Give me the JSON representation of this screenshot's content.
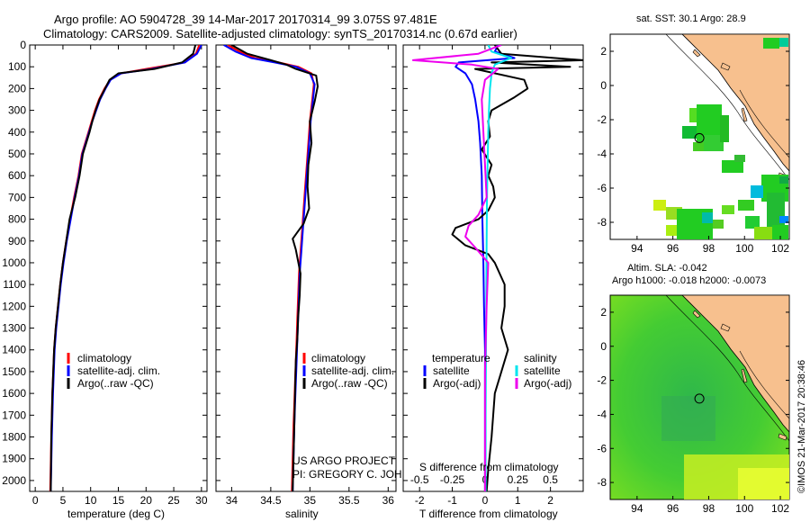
{
  "header": {
    "line1": "Argo profile: AO 5904728_39 14-Mar-2017 20170314_99 3.075S 97.481E",
    "line2": "Climatology: CARS2009. Satellite-adjusted climatology: synTS_20170314.nc (0.67d earlier)"
  },
  "footer": {
    "project": "US ARGO PROJECT",
    "pi": "PI: GREGORY C. JOHNSON",
    "credit": "©IMOS 21-Mar-2017 20:38:46"
  },
  "colors": {
    "climatology": "#ff0000",
    "satellite": "#0000ff",
    "argo": "#000000",
    "sal_satellite": "#00e5ee",
    "sal_argo": "#ee00ee",
    "land": "#f7c08e",
    "sst_green": "#22cc22"
  },
  "chart_data": [
    {
      "type": "line",
      "id": "temperature",
      "xlabel": "temperature (deg C)",
      "ylabel": "depth",
      "xlim": [
        -1,
        31
      ],
      "ylim": [
        2050,
        0
      ],
      "xticks": [
        "0",
        "5",
        "10",
        "15",
        "20",
        "25",
        "30"
      ],
      "yticks": [
        "0",
        "100",
        "200",
        "300",
        "400",
        "500",
        "600",
        "700",
        "800",
        "900",
        "1000",
        "1100",
        "1200",
        "1300",
        "1400",
        "1500",
        "1600",
        "1700",
        "1800",
        "1900",
        "2000"
      ],
      "legend": [
        "climatology",
        "satellite-adj. clim.",
        "Argo(..raw -QC)"
      ],
      "series": [
        {
          "name": "climatology",
          "color": "#ff0000",
          "x": [
            29.6,
            29.0,
            27.0,
            20.0,
            15.5,
            13.5,
            12.5,
            11.5,
            10.8,
            10.2,
            9.6,
            9.0,
            8.4,
            7.8,
            7.0,
            6.3,
            5.6,
            5.0,
            4.5,
            4.1,
            3.7,
            3.4,
            3.1,
            2.9,
            2.7
          ],
          "y": [
            0,
            40,
            80,
            110,
            130,
            160,
            200,
            250,
            300,
            350,
            400,
            450,
            500,
            600,
            700,
            800,
            900,
            1000,
            1100,
            1200,
            1300,
            1400,
            1600,
            1800,
            2050
          ]
        },
        {
          "name": "satellite-adj. clim.",
          "color": "#0000ff",
          "x": [
            30.0,
            29.2,
            27.0,
            21.0,
            15.5,
            13.6,
            12.7,
            11.7,
            11.0,
            10.3,
            9.7,
            9.1,
            8.5,
            7.9,
            7.1,
            6.4,
            5.7,
            5.1,
            4.6,
            4.2,
            3.8,
            3.5,
            3.2,
            3.0,
            2.8
          ],
          "y": [
            0,
            40,
            80,
            110,
            130,
            160,
            200,
            250,
            300,
            350,
            400,
            450,
            500,
            600,
            700,
            800,
            900,
            1000,
            1100,
            1200,
            1300,
            1400,
            1600,
            1800,
            2050
          ]
        },
        {
          "name": "Argo(..raw -QC)",
          "color": "#000000",
          "x": [
            28.9,
            28.5,
            26.5,
            21.5,
            15.0,
            13.4,
            12.6,
            11.6,
            10.9,
            10.3,
            9.8,
            9.2,
            8.6,
            8.0,
            7.2,
            6.2,
            5.6,
            5.0,
            4.5,
            4.1,
            3.7,
            3.4,
            3.1,
            2.9,
            2.8
          ],
          "y": [
            0,
            40,
            80,
            110,
            130,
            160,
            200,
            250,
            300,
            350,
            400,
            450,
            500,
            600,
            700,
            800,
            900,
            1000,
            1100,
            1200,
            1300,
            1400,
            1600,
            1800,
            2050
          ]
        }
      ]
    },
    {
      "type": "line",
      "id": "salinity",
      "xlabel": "salinity",
      "xlim": [
        33.8,
        36.1
      ],
      "ylim": [
        2050,
        0
      ],
      "xticks": [
        "34",
        "34.5",
        "35",
        "35.5",
        "36"
      ],
      "legend": [
        "climatology",
        "satellite-adj. clim.",
        "Argo(..raw -QC)"
      ],
      "series": [
        {
          "name": "climatology",
          "color": "#ff0000",
          "x": [
            33.95,
            34.1,
            34.3,
            34.6,
            34.85,
            35.02,
            35.05,
            35.03,
            35.0,
            34.98,
            34.96,
            34.94,
            34.92,
            34.9,
            34.88,
            34.86,
            34.85,
            34.84,
            34.83,
            34.82,
            34.81,
            34.8,
            34.79,
            34.78,
            34.77
          ],
          "y": [
            0,
            30,
            60,
            80,
            100,
            130,
            180,
            250,
            350,
            450,
            550,
            650,
            750,
            850,
            950,
            1050,
            1150,
            1250,
            1350,
            1450,
            1550,
            1650,
            1750,
            1900,
            2050
          ]
        },
        {
          "name": "satellite-adj. clim.",
          "color": "#0000ff",
          "x": [
            33.9,
            34.05,
            34.25,
            34.55,
            34.82,
            35.0,
            35.06,
            35.04,
            35.01,
            34.99,
            34.97,
            34.95,
            34.93,
            34.91,
            34.89,
            34.87,
            34.86,
            34.85,
            34.84,
            34.83,
            34.82,
            34.81,
            34.8,
            34.79,
            34.78
          ],
          "y": [
            0,
            30,
            60,
            80,
            100,
            130,
            180,
            250,
            350,
            450,
            550,
            650,
            750,
            850,
            950,
            1050,
            1150,
            1250,
            1350,
            1450,
            1550,
            1650,
            1750,
            1900,
            2050
          ]
        },
        {
          "name": "Argo(..raw -QC)",
          "color": "#000000",
          "x": [
            34.0,
            34.2,
            34.5,
            34.7,
            34.82,
            35.08,
            35.1,
            35.06,
            35.0,
            35.02,
            34.98,
            34.97,
            34.99,
            34.92,
            34.84,
            34.78,
            34.82,
            34.88,
            34.87,
            34.85,
            34.84,
            34.82,
            34.81,
            34.8,
            34.79,
            34.78
          ],
          "y": [
            0,
            40,
            70,
            90,
            110,
            140,
            190,
            260,
            350,
            450,
            550,
            650,
            750,
            820,
            860,
            890,
            940,
            1050,
            1150,
            1250,
            1350,
            1450,
            1600,
            1750,
            1900,
            2050
          ]
        }
      ]
    },
    {
      "type": "line",
      "id": "difference",
      "xlabel": "T difference from climatology",
      "xlabel_top": "S difference from climatology",
      "xlim": [
        -2.5,
        3.0
      ],
      "ylim": [
        2050,
        0
      ],
      "xticks": [
        "-2",
        "-1",
        "0",
        "1",
        "2"
      ],
      "s_xticks": [
        "-0.5",
        "-0.25",
        "0",
        "0.25",
        "0.5"
      ],
      "legend_headers": [
        "temperature",
        "salinity"
      ],
      "legend": [
        "satellite",
        "Argo(-adj)",
        "satellite",
        "Argo(-adj)"
      ],
      "series": [
        {
          "name": "temperature satellite",
          "color": "#0000ff",
          "x": [
            0.4,
            0.3,
            0.9,
            -0.8,
            -0.9,
            -0.6,
            -0.4,
            -0.3,
            -0.2,
            -0.15,
            -0.1,
            -0.08,
            -0.05,
            -0.03,
            0.0,
            0.0,
            0.0,
            0.0
          ],
          "y": [
            0,
            30,
            60,
            80,
            100,
            130,
            180,
            250,
            350,
            450,
            600,
            800,
            1000,
            1200,
            1400,
            1600,
            1800,
            2050
          ]
        },
        {
          "name": "temperature Argo(-adj)",
          "color": "#000000",
          "x": [
            0.3,
            0.5,
            3.0,
            0.2,
            2.6,
            -0.3,
            1.2,
            1.3,
            0.9,
            0.2,
            0.1,
            0.15,
            -0.1,
            0.2,
            0.1,
            0.25,
            0.3,
            0.1,
            -0.2,
            -0.9,
            -1.0,
            -0.6,
            0.1,
            0.3,
            0.6,
            0.6,
            0.5,
            0.7,
            0.5,
            0.3,
            0.2,
            0.1,
            0.05
          ],
          "y": [
            0,
            40,
            70,
            80,
            100,
            110,
            160,
            200,
            240,
            300,
            350,
            420,
            480,
            550,
            600,
            650,
            700,
            760,
            800,
            840,
            870,
            920,
            960,
            1000,
            1100,
            1200,
            1300,
            1400,
            1500,
            1600,
            1800,
            1950,
            2050
          ]
        },
        {
          "name": "salinity satellite",
          "color": "#00e5ee",
          "x": [
            0.1,
            0.2,
            0.8,
            0.3,
            0.2,
            0.15,
            0.12,
            0.1,
            0.08,
            0.06,
            0.05,
            0.04,
            0.03,
            0.02,
            0.02
          ],
          "y": [
            0,
            30,
            60,
            90,
            130,
            200,
            300,
            400,
            550,
            700,
            900,
            1100,
            1400,
            1700,
            2050
          ]
        },
        {
          "name": "salinity Argo(-adj)",
          "color": "#ee00ee",
          "x": [
            0.5,
            -0.2,
            -2.2,
            -0.4,
            0.4,
            0.0,
            -0.1,
            -0.05,
            0.0,
            0.05,
            -0.2,
            -0.5,
            -0.6,
            -0.3,
            0.1,
            0.05,
            0.0,
            0.0,
            0.0
          ],
          "y": [
            0,
            40,
            70,
            90,
            110,
            160,
            250,
            400,
            550,
            700,
            780,
            830,
            880,
            930,
            1000,
            1200,
            1500,
            1800,
            2050
          ]
        }
      ]
    },
    {
      "type": "heatmap",
      "id": "sst-map",
      "title": "sat. SST: 30.1  Argo: 28.9",
      "xlim": [
        92.5,
        102.5
      ],
      "ylim": [
        -9,
        3
      ],
      "xticks": [
        "94",
        "96",
        "98",
        "100",
        "102"
      ],
      "yticks": [
        "2",
        "0",
        "-2",
        "-4",
        "-6",
        "-8"
      ],
      "marker": {
        "lon": 97.481,
        "lat": -3.075
      }
    },
    {
      "type": "heatmap",
      "id": "sla-map",
      "title_line1": "Altim. SLA: -0.042",
      "title_line2": "Argo h1000: -0.018  h2000: -0.0073",
      "xlim": [
        92.5,
        102.5
      ],
      "ylim": [
        -9,
        3
      ],
      "xticks": [
        "94",
        "96",
        "98",
        "100",
        "102"
      ],
      "yticks": [
        "2",
        "0",
        "-2",
        "-4",
        "-6",
        "-8"
      ],
      "marker": {
        "lon": 97.481,
        "lat": -3.075
      }
    }
  ]
}
